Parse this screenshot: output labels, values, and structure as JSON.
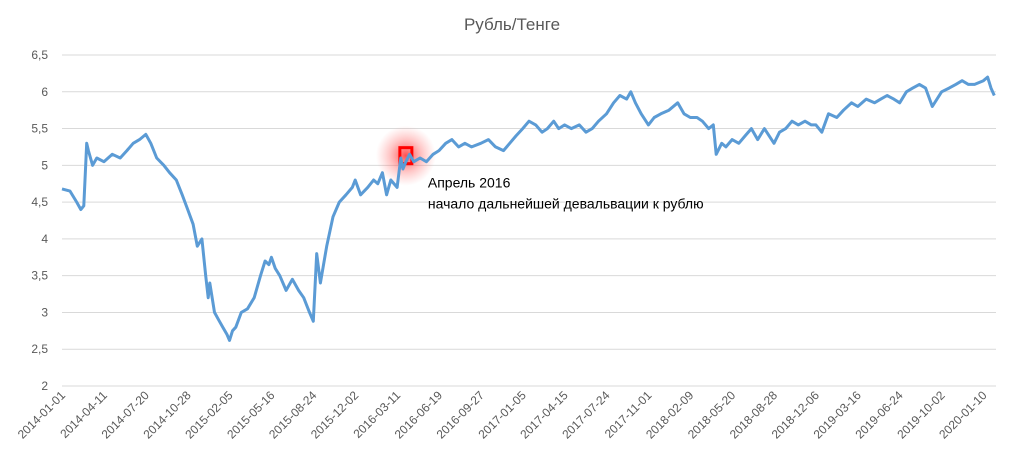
{
  "chart_data": {
    "type": "line",
    "title": "Рубль/Тенге",
    "xlabel": "",
    "ylabel": "",
    "ylim": [
      2,
      6.5
    ],
    "yticks": [
      "2",
      "2,5",
      "3",
      "3,5",
      "4",
      "4,5",
      "5",
      "5,5",
      "6",
      "6,5"
    ],
    "xticks": [
      "2014-01-01",
      "2014-04-11",
      "2014-07-20",
      "2014-10-28",
      "2015-02-05",
      "2015-05-16",
      "2015-08-24",
      "2015-12-02",
      "2016-03-11",
      "2016-06-19",
      "2016-09-27",
      "2017-01-05",
      "2017-04-15",
      "2017-07-24",
      "2017-11-01",
      "2018-02-09",
      "2018-05-20",
      "2018-08-28",
      "2018-12-06",
      "2019-03-16",
      "2019-06-24",
      "2019-10-02",
      "2020-01-10"
    ],
    "grid": true,
    "legend": "none",
    "colors": {
      "line": "#5b9bd5",
      "highlight": "#ff0000"
    },
    "series": [
      {
        "x": [
          "2014-01-01",
          "2014-01-20",
          "2014-02-05",
          "2014-02-15",
          "2014-02-22",
          "2014-03-01",
          "2014-03-05",
          "2014-03-15",
          "2014-03-25",
          "2014-04-11",
          "2014-05-01",
          "2014-05-20",
          "2014-06-05",
          "2014-06-20",
          "2014-07-05",
          "2014-07-20",
          "2014-08-01",
          "2014-08-15",
          "2014-09-01",
          "2014-09-15",
          "2014-10-01",
          "2014-10-15",
          "2014-10-28",
          "2014-11-10",
          "2014-11-20",
          "2014-12-01",
          "2014-12-10",
          "2014-12-16",
          "2014-12-20",
          "2014-12-31",
          "2015-01-10",
          "2015-01-20",
          "2015-01-30",
          "2015-02-05",
          "2015-02-12",
          "2015-02-20",
          "2015-03-05",
          "2015-03-20",
          "2015-04-05",
          "2015-04-20",
          "2015-05-01",
          "2015-05-10",
          "2015-05-16",
          "2015-05-25",
          "2015-06-05",
          "2015-06-20",
          "2015-07-05",
          "2015-07-20",
          "2015-08-01",
          "2015-08-15",
          "2015-08-24",
          "2015-09-01",
          "2015-09-10",
          "2015-09-25",
          "2015-10-10",
          "2015-10-25",
          "2015-11-10",
          "2015-11-25",
          "2015-12-02",
          "2015-12-15",
          "2016-01-01",
          "2016-01-15",
          "2016-01-25",
          "2016-02-05",
          "2016-02-15",
          "2016-02-25",
          "2016-03-11",
          "2016-03-20",
          "2016-03-25",
          "2016-04-01",
          "2016-04-10",
          "2016-04-20",
          "2016-05-05",
          "2016-05-20",
          "2016-06-05",
          "2016-06-19",
          "2016-07-05",
          "2016-07-20",
          "2016-08-05",
          "2016-08-20",
          "2016-09-05",
          "2016-09-27",
          "2016-10-15",
          "2016-11-01",
          "2016-11-20",
          "2016-12-05",
          "2016-12-20",
          "2017-01-05",
          "2017-01-20",
          "2017-02-05",
          "2017-02-20",
          "2017-03-05",
          "2017-03-20",
          "2017-04-01",
          "2017-04-15",
          "2017-05-01",
          "2017-05-20",
          "2017-06-05",
          "2017-06-20",
          "2017-07-05",
          "2017-07-24",
          "2017-08-10",
          "2017-08-25",
          "2017-09-10",
          "2017-09-20",
          "2017-10-01",
          "2017-10-15",
          "2017-11-01",
          "2017-11-15",
          "2017-12-01",
          "2017-12-20",
          "2018-01-10",
          "2018-01-25",
          "2018-02-09",
          "2018-02-25",
          "2018-03-10",
          "2018-03-25",
          "2018-04-05",
          "2018-04-12",
          "2018-04-25",
          "2018-05-05",
          "2018-05-20",
          "2018-06-05",
          "2018-06-20",
          "2018-07-05",
          "2018-07-20",
          "2018-08-05",
          "2018-08-28",
          "2018-09-10",
          "2018-09-25",
          "2018-10-10",
          "2018-10-25",
          "2018-11-10",
          "2018-11-25",
          "2018-12-06",
          "2018-12-20",
          "2019-01-05",
          "2019-01-25",
          "2019-02-10",
          "2019-03-01",
          "2019-03-16",
          "2019-04-05",
          "2019-04-25",
          "2019-05-10",
          "2019-05-25",
          "2019-06-10",
          "2019-06-24",
          "2019-07-10",
          "2019-07-25",
          "2019-08-10",
          "2019-08-25",
          "2019-09-10",
          "2019-10-02",
          "2019-10-20",
          "2019-11-05",
          "2019-11-20",
          "2019-12-05",
          "2019-12-20",
          "2020-01-10",
          "2020-01-20",
          "2020-01-28",
          "2020-02-05"
        ],
        "values": [
          4.68,
          4.65,
          4.5,
          4.4,
          4.45,
          5.3,
          5.2,
          5.0,
          5.1,
          5.05,
          5.15,
          5.1,
          5.2,
          5.3,
          5.35,
          5.42,
          5.3,
          5.1,
          5.0,
          4.9,
          4.8,
          4.6,
          4.4,
          4.2,
          3.9,
          4.0,
          3.5,
          3.2,
          3.4,
          3.0,
          2.9,
          2.8,
          2.7,
          2.62,
          2.75,
          2.8,
          3.0,
          3.05,
          3.2,
          3.5,
          3.7,
          3.65,
          3.75,
          3.6,
          3.5,
          3.3,
          3.45,
          3.3,
          3.2,
          3.0,
          2.88,
          3.8,
          3.4,
          3.9,
          4.3,
          4.5,
          4.6,
          4.7,
          4.8,
          4.6,
          4.7,
          4.8,
          4.75,
          4.9,
          4.6,
          4.8,
          4.7,
          5.1,
          4.95,
          5.05,
          5.15,
          5.05,
          5.1,
          5.05,
          5.15,
          5.2,
          5.3,
          5.35,
          5.25,
          5.3,
          5.25,
          5.3,
          5.35,
          5.25,
          5.2,
          5.3,
          5.4,
          5.5,
          5.6,
          5.55,
          5.45,
          5.5,
          5.6,
          5.5,
          5.55,
          5.5,
          5.55,
          5.45,
          5.5,
          5.6,
          5.7,
          5.85,
          5.95,
          5.9,
          6.0,
          5.85,
          5.7,
          5.55,
          5.65,
          5.7,
          5.75,
          5.85,
          5.7,
          5.65,
          5.65,
          5.6,
          5.5,
          5.55,
          5.15,
          5.3,
          5.25,
          5.35,
          5.3,
          5.4,
          5.5,
          5.35,
          5.5,
          5.3,
          5.45,
          5.5,
          5.6,
          5.55,
          5.6,
          5.55,
          5.55,
          5.45,
          5.7,
          5.65,
          5.75,
          5.85,
          5.8,
          5.9,
          5.85,
          5.9,
          5.95,
          5.9,
          5.85,
          6.0,
          6.05,
          6.1,
          6.05,
          5.8,
          6.0,
          6.05,
          6.1,
          6.15,
          6.1,
          6.1,
          6.15,
          6.2,
          6.05,
          5.95
        ]
      }
    ],
    "annotations": {
      "line1": "Апрель 2016",
      "line2": "начало дальнейшей девальвации к рублю",
      "at_x": "2016-04-01",
      "at_y": 5.05
    }
  }
}
